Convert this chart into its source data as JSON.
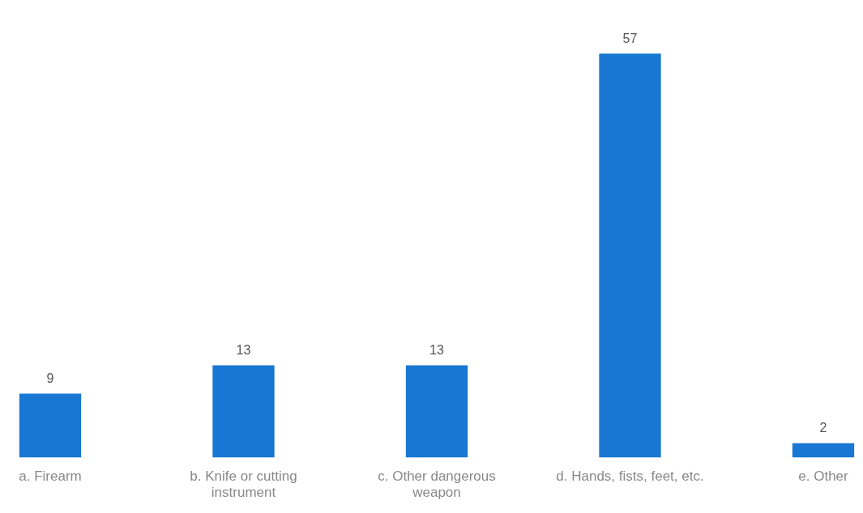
{
  "chart_data": {
    "type": "bar",
    "categories": [
      "a. Firearm",
      "b. Knife or cutting instrument",
      "c. Other dangerous weapon",
      "d. Hands, fists, feet, etc.",
      "e. Other"
    ],
    "values": [
      9,
      13,
      13,
      57,
      2
    ],
    "color": "#1777d3",
    "data_labels": true,
    "grid": false,
    "legend": false
  }
}
